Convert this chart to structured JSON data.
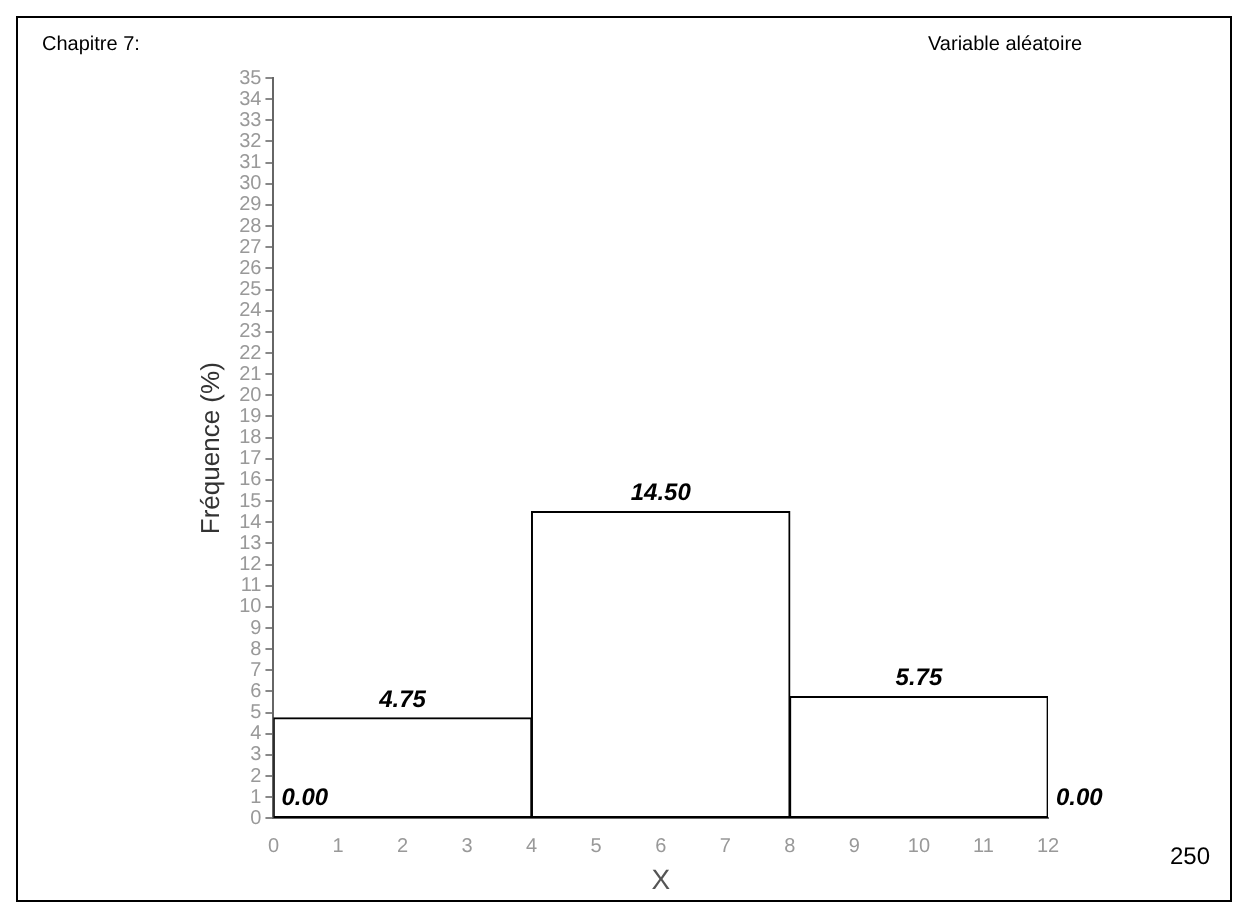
{
  "chart_data": {
    "type": "histogram",
    "xlabel": "X",
    "ylabel": "Fréquence (%)",
    "bins": [
      0,
      4,
      8,
      12
    ],
    "values": [
      4.75,
      14.5,
      5.75
    ],
    "value_labels": [
      "4.75",
      "14.50",
      "5.75"
    ],
    "color": "#ffffff",
    "xlim": [
      0,
      12
    ],
    "xticks": [
      0,
      1,
      2,
      3,
      4,
      5,
      6,
      7,
      8,
      9,
      10,
      11,
      12
    ],
    "ylim": [
      0,
      35
    ],
    "yticks": [
      0,
      1,
      2,
      3,
      4,
      5,
      6,
      7,
      8,
      9,
      10,
      11,
      12,
      13,
      14,
      15,
      16,
      17,
      18,
      19,
      20,
      21,
      22,
      23,
      24,
      25,
      26,
      27,
      28,
      29,
      30,
      31,
      32,
      33,
      34,
      35
    ],
    "grid": false,
    "legend": false,
    "annotations": [
      "0.00",
      "0.00",
      "Chapitre 7:",
      "Variable aléatoire",
      "250"
    ]
  }
}
